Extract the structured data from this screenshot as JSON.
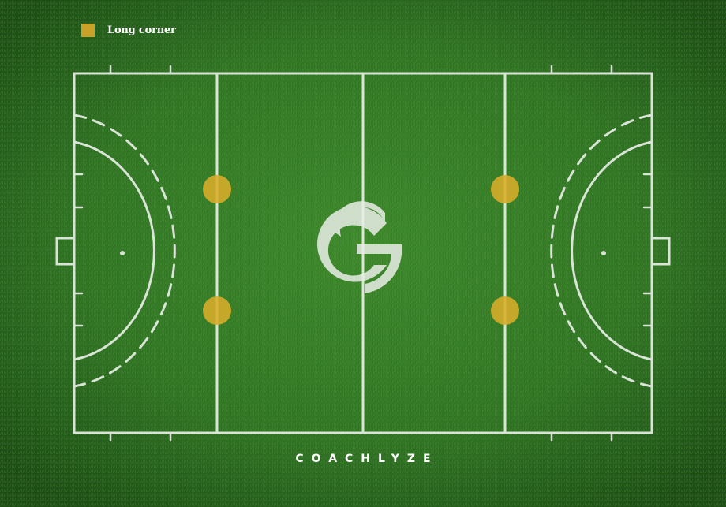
{
  "legend": {
    "items": [
      {
        "label": "Long corner",
        "color": "#c9a227"
      }
    ]
  },
  "brand": {
    "name": "COACHLYZE",
    "logo_icon": "coachlyze-logo-icon"
  },
  "colors": {
    "turf": "#2e6e22",
    "line": "#e8eee6",
    "long_corner_marker": "#d9ad2a"
  },
  "markers": {
    "long_corner_count": 4
  }
}
